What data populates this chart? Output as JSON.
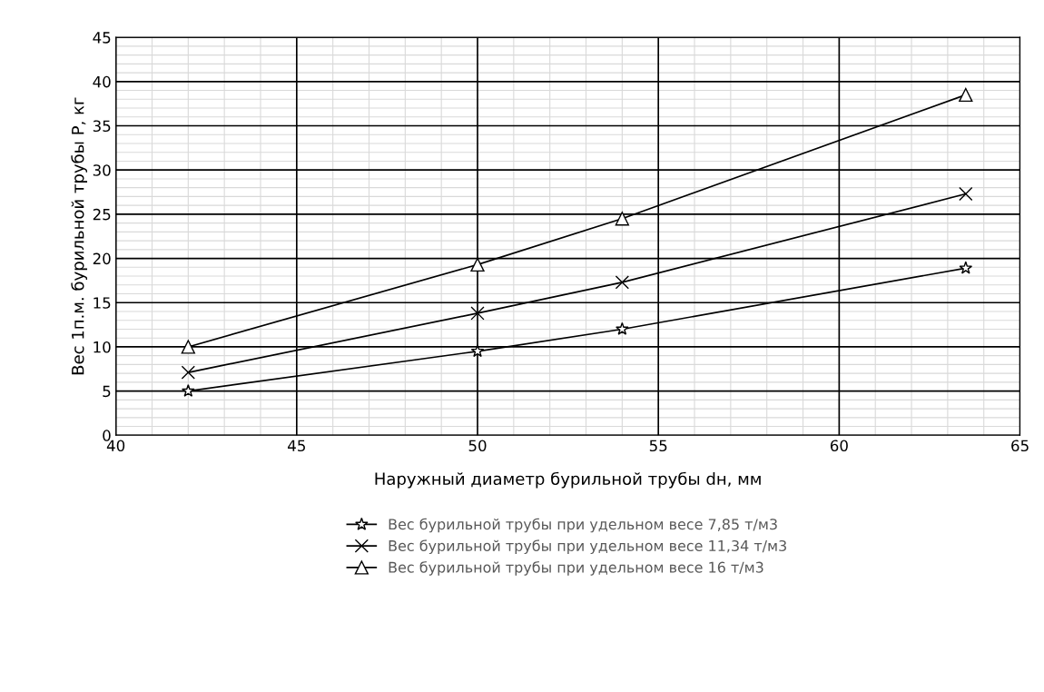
{
  "chart_data": {
    "type": "line",
    "xlabel": "Наружный диаметр бурильной трубы dн, мм",
    "ylabel": "Вес 1п.м. бурильной трубы Р, кг",
    "x": [
      42,
      50,
      54,
      63.5
    ],
    "series": [
      {
        "name": "Вес бурильной трубы при удельном весе 7,85 т/м3",
        "color": "#000000",
        "marker": "star",
        "values": [
          5.0,
          9.5,
          12.0,
          18.9
        ]
      },
      {
        "name": "Вес бурильной трубы при удельном весе 11,34 т/м3",
        "color": "#000000",
        "marker": "cross",
        "values": [
          7.1,
          13.8,
          17.3,
          27.3
        ]
      },
      {
        "name": "Вес бурильной трубы при удельном весе 16 т/м3",
        "color": "#000000",
        "marker": "triangle",
        "values": [
          10.0,
          19.3,
          24.5,
          38.5
        ]
      }
    ],
    "xlim": [
      40,
      65
    ],
    "xticks": [
      40,
      45,
      50,
      55,
      60,
      65
    ],
    "ylim": [
      0,
      45
    ],
    "yticks": [
      0,
      5,
      10,
      15,
      20,
      25,
      30,
      35,
      40,
      45
    ],
    "grid": true,
    "legend": "bottom",
    "line_style": "solid"
  }
}
